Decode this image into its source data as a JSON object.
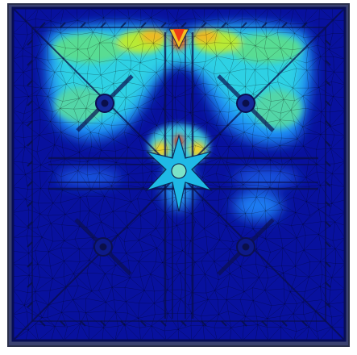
{
  "figure": {
    "kind": "finite-element stress contour",
    "description_visible_text": "",
    "colormap": [
      "#08119e",
      "#0a2bd4",
      "#1469ff",
      "#22c6f2",
      "#5fe08f",
      "#c4ec2c",
      "#f7c51c",
      "#ee3b16"
    ],
    "mesh_line_color": "#000000",
    "frame_color": "#2a2f4a"
  }
}
